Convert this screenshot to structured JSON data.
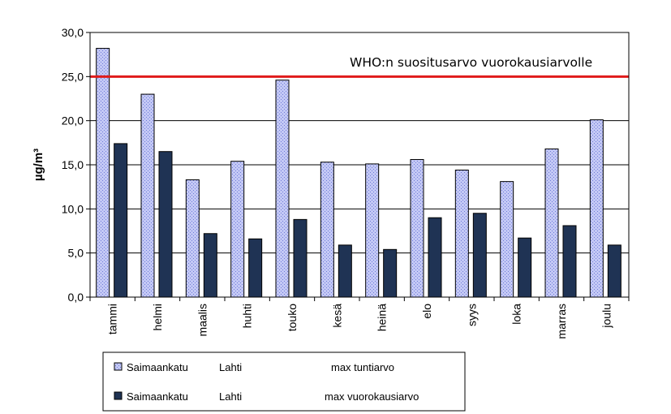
{
  "chart_data": {
    "type": "bar",
    "title": "",
    "xlabel": "",
    "ylabel": "µg/m³",
    "ylim": [
      0,
      30
    ],
    "yticks": [
      "0,0",
      "5,0",
      "10,0",
      "15,0",
      "20,0",
      "25,0",
      "30,0"
    ],
    "categories": [
      "tammi",
      "helmi",
      "maalis",
      "huhti",
      "touko",
      "kesä",
      "heinä",
      "elo",
      "syys",
      "loka",
      "marras",
      "joulu"
    ],
    "series": [
      {
        "name": "Saimaankatu   Lahti                        max tuntiarvo",
        "station": "Saimaankatu",
        "city": "Lahti",
        "metric": "max tuntiarvo",
        "color": "#aab2f0",
        "values": [
          28.2,
          23.0,
          13.3,
          15.4,
          24.6,
          15.3,
          15.1,
          15.6,
          14.4,
          13.1,
          16.8,
          20.1
        ]
      },
      {
        "name": "Saimaankatu   Lahti                        max vuorokausiarvo",
        "station": "Saimaankatu",
        "city": "Lahti",
        "metric": "max vuorokausiarvo",
        "color": "#1f3354",
        "values": [
          17.4,
          16.5,
          7.2,
          6.6,
          8.8,
          5.9,
          5.4,
          9.0,
          9.5,
          6.7,
          8.1,
          5.9
        ]
      }
    ],
    "reference_line": {
      "value": 25.0,
      "label": "WHO:n suositusarvo vuorokausiarvolle",
      "color": "#e01b1b"
    },
    "grid": true,
    "legend_position": "bottom"
  }
}
